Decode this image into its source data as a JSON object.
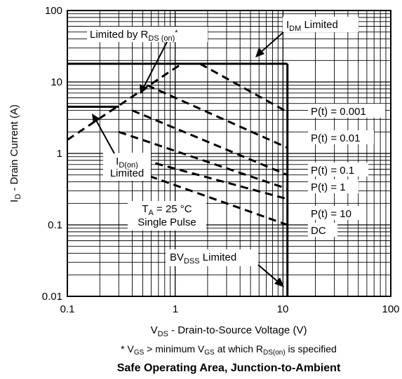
{
  "chart_data": {
    "type": "line",
    "x_scale": "log",
    "y_scale": "log",
    "xlim": [
      0.1,
      100
    ],
    "ylim": [
      0.01,
      100
    ],
    "x_ticks": [
      "0.1",
      "1",
      "10",
      "100"
    ],
    "y_ticks": [
      "0.01",
      "0.1",
      "1",
      "10",
      "100"
    ],
    "grid": true,
    "xlabel": {
      "main": "V",
      "sub": "DS",
      "rest": " - Drain-to-Source Voltage (V)"
    },
    "ylabel": {
      "main": "I",
      "sub": "D",
      "rest": " - Drain Current (A)"
    },
    "footnote": {
      "p1": "* V",
      "s1": "GS",
      "p2": " > minimum V",
      "s2": "GS",
      "p3": " at which R",
      "s3": "DS(on)",
      "p4": " is specified"
    },
    "caption": "Safe Operating Area, Junction-to-Ambient",
    "solid_lines": [
      {
        "name": "IDM",
        "points": [
          [
            0.1,
            18
          ],
          [
            11,
            18
          ]
        ]
      },
      {
        "name": "ID(on)",
        "points": [
          [
            0.1,
            4.5
          ],
          [
            0.3,
            4.5
          ]
        ]
      },
      {
        "name": "BVDSS",
        "points": [
          [
            11,
            0.01
          ],
          [
            11,
            18
          ]
        ]
      }
    ],
    "dashed_series": [
      {
        "label": "P(t) = 0.001",
        "points": [
          [
            1.7,
            18
          ],
          [
            11,
            3.8
          ]
        ]
      },
      {
        "label": "P(t) = 0.01",
        "points": [
          [
            0.55,
            9
          ],
          [
            11,
            1.2
          ]
        ]
      },
      {
        "label": "P(t) = 0.1",
        "points": [
          [
            0.4,
            4
          ],
          [
            11,
            0.5
          ]
        ]
      },
      {
        "label": "P(t) = 1",
        "points": [
          [
            0.3,
            2
          ],
          [
            11,
            0.32
          ]
        ]
      },
      {
        "label": "P(t) = 10",
        "points": [
          [
            0.3,
            1
          ],
          [
            11,
            0.23
          ]
        ]
      },
      {
        "label": "DC",
        "points": [
          [
            0.45,
            0.55
          ],
          [
            11,
            0.1
          ]
        ]
      },
      {
        "label": "rds",
        "points": [
          [
            0.1,
            1.55
          ],
          [
            1.15,
            18
          ]
        ]
      }
    ],
    "annotations": {
      "rds": {
        "main": "Limited by R",
        "sub": "DS (on)",
        "tail": "*"
      },
      "idm": {
        "main": "I",
        "sub": "DM",
        "tail": " Limited"
      },
      "idon": {
        "main": "I",
        "sub": "D(on)",
        "line2": "Limited"
      },
      "ta": {
        "main": "T",
        "sub": "A",
        "tail": " = 25 °C",
        "line2": "Single Pulse"
      },
      "bv": {
        "main": "BV",
        "sub": "DSS",
        "tail": " Limited"
      },
      "p0001": "P(t) = 0.001",
      "p001": "P(t) = 0.01",
      "p01": "P(t) = 0.1",
      "p1": "P(t) = 1",
      "p10": "P(t) = 10",
      "dc": "DC"
    }
  }
}
